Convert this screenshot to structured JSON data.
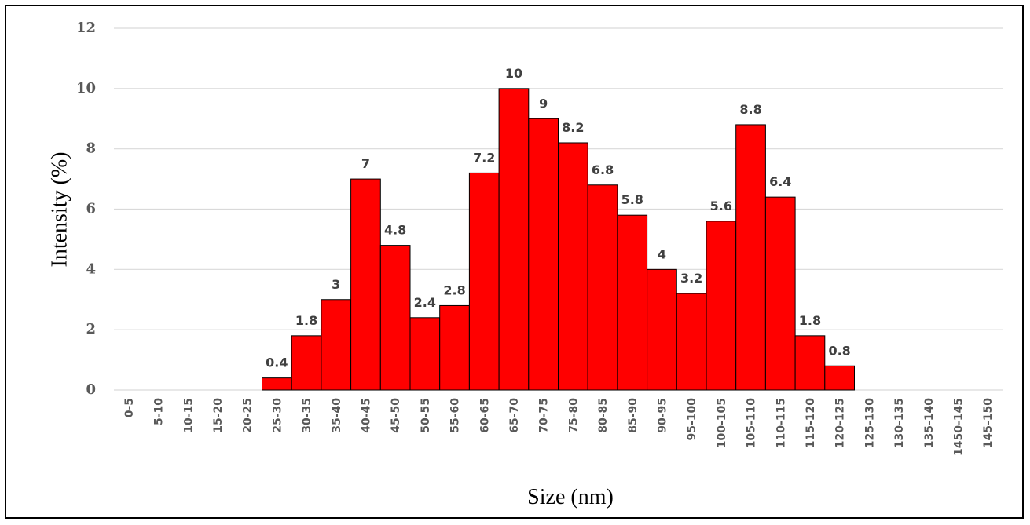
{
  "chart_data": {
    "type": "bar",
    "title": "",
    "xlabel": "Size (nm)",
    "ylabel": "Intensity (%)",
    "ylim": [
      0,
      12
    ],
    "yticks": [
      0,
      2,
      4,
      6,
      8,
      10,
      12
    ],
    "grid": "horizontal",
    "legend": "none",
    "bar_color": "#ff0000",
    "categories": [
      "0-5",
      "5-10",
      "10-15",
      "15-20",
      "20-25",
      "25-30",
      "30-35",
      "35-40",
      "40-45",
      "45-50",
      "50-55",
      "55-60",
      "60-65",
      "65-70",
      "70-75",
      "75-80",
      "80-85",
      "85-90",
      "90-95",
      "95-100",
      "100-105",
      "105-110",
      "110-115",
      "115-120",
      "120-125",
      "125-130",
      "130-135",
      "135-140",
      "1450-145",
      "145-150"
    ],
    "values": [
      0,
      0,
      0,
      0,
      0,
      0.4,
      1.8,
      3,
      7,
      4.8,
      2.4,
      2.8,
      7.2,
      10,
      9,
      8.2,
      6.8,
      5.8,
      4,
      3.2,
      5.6,
      8.8,
      6.4,
      1.8,
      0.8,
      0,
      0,
      0,
      0,
      0
    ],
    "data_labels": [
      "",
      "",
      "",
      "",
      "",
      "0.4",
      "1.8",
      "3",
      "7",
      "4.8",
      "2.4",
      "2.8",
      "7.2",
      "10",
      "9",
      "8.2",
      "6.8",
      "5.8",
      "4",
      "3.2",
      "5.6",
      "8.8",
      "6.4",
      "1.8",
      "0.8",
      "",
      "",
      "",
      "",
      ""
    ]
  }
}
